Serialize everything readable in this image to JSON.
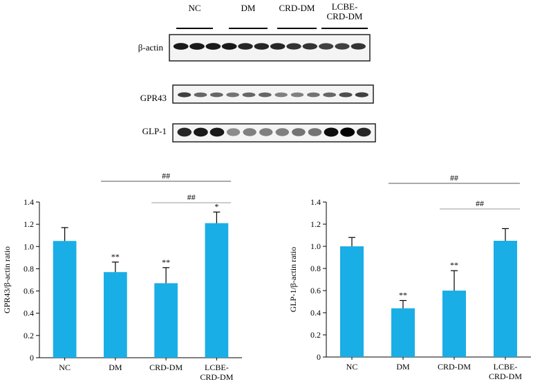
{
  "blot": {
    "groups": [
      "NC",
      "DM",
      "CRD-DM",
      "LCBE-\nCRD-DM"
    ],
    "rows": [
      {
        "label": "β-actin",
        "intensity": [
          0.9,
          0.9,
          0.9,
          0.9,
          0.85,
          0.85,
          0.85,
          0.8,
          0.8,
          0.75,
          0.75,
          0.8
        ]
      },
      {
        "label": "GPR43",
        "intensity": [
          0.75,
          0.6,
          0.6,
          0.55,
          0.6,
          0.6,
          0.5,
          0.5,
          0.55,
          0.6,
          0.7,
          0.75
        ]
      },
      {
        "label": "GLP-1",
        "intensity": [
          0.85,
          0.9,
          0.9,
          0.45,
          0.5,
          0.5,
          0.5,
          0.55,
          0.55,
          0.95,
          1.0,
          0.85
        ]
      }
    ]
  },
  "chart_data": [
    {
      "type": "bar",
      "categories": [
        "NC",
        "DM",
        "CRD-DM",
        "LCBE-\nCRD-DM"
      ],
      "values": [
        1.05,
        0.77,
        0.67,
        1.21
      ],
      "errors": [
        0.12,
        0.09,
        0.14,
        0.1
      ],
      "annotations_above": [
        "",
        "**",
        "**",
        "*"
      ],
      "ylabel": "GPR43/β-actin ratio",
      "ylim": [
        0,
        1.4
      ],
      "yticks": [
        "0",
        "0.2",
        "0.4",
        "0.6",
        "0.8",
        "1.0",
        "1.2",
        "1.4"
      ],
      "brackets": [
        {
          "from": 1,
          "to": 3,
          "label": "##"
        },
        {
          "from": 2,
          "to": 3,
          "label": "##"
        }
      ],
      "bar_color": "#1aaee6"
    },
    {
      "type": "bar",
      "categories": [
        "NC",
        "DM",
        "CRD-DM",
        "LCBE-\nCRD-DM"
      ],
      "values": [
        1.0,
        0.44,
        0.6,
        1.05
      ],
      "errors": [
        0.08,
        0.07,
        0.18,
        0.11
      ],
      "annotations_above": [
        "",
        "**",
        "**",
        ""
      ],
      "ylabel": "GLP-1/β-actin ratio",
      "ylim": [
        0,
        1.4
      ],
      "yticks": [
        "0",
        "0.2",
        "0.4",
        "0.6",
        "0.8",
        "1.0",
        "1.2",
        "1.4"
      ],
      "brackets": [
        {
          "from": 1,
          "to": 3,
          "label": "##"
        },
        {
          "from": 2,
          "to": 3,
          "label": "##"
        }
      ],
      "bar_color": "#1aaee6"
    }
  ]
}
